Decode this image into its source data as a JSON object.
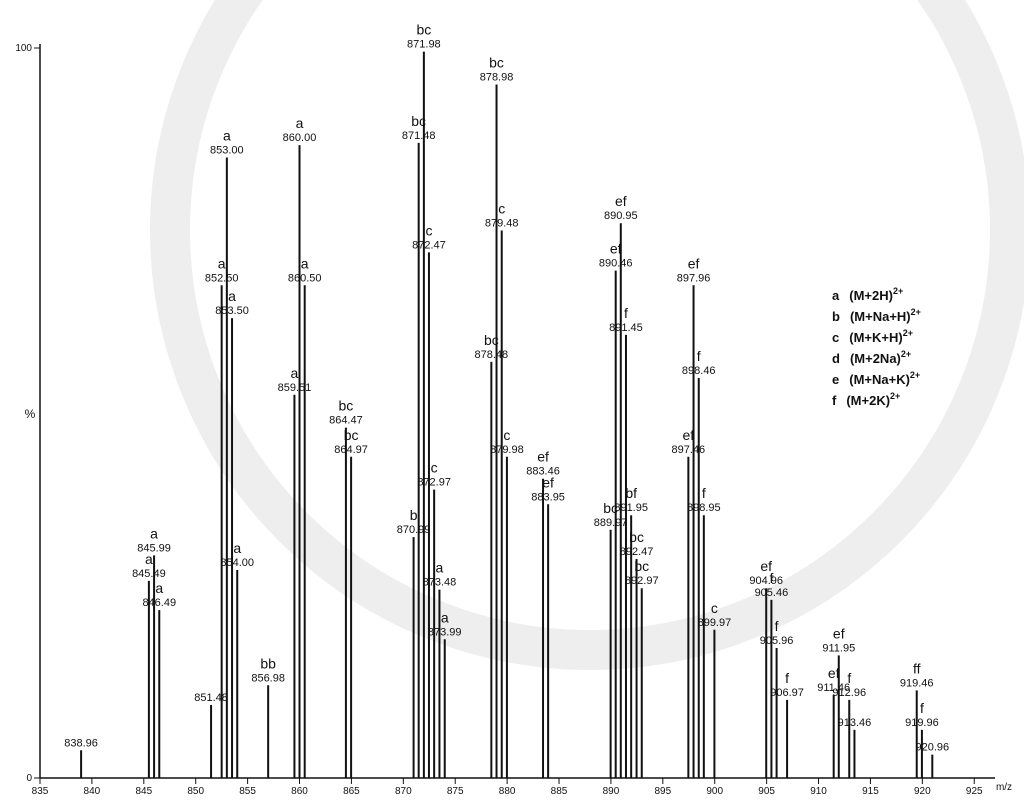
{
  "chart_data": {
    "type": "spectrum",
    "x_label": "m/z",
    "y_label": "%",
    "xlim": [
      835,
      927
    ],
    "xticks": [
      835,
      840,
      845,
      850,
      855,
      860,
      865,
      870,
      875,
      880,
      885,
      890,
      895,
      900,
      905,
      910,
      915,
      920,
      925
    ],
    "ylim": [
      0,
      100
    ],
    "yticks": [
      0,
      100
    ],
    "color": "#111111",
    "x": [
      838.96,
      845.49,
      845.99,
      846.49,
      851.48,
      852.5,
      853.0,
      853.5,
      854.0,
      856.98,
      859.51,
      860.0,
      860.5,
      864.47,
      864.97,
      870.99,
      871.48,
      871.98,
      872.47,
      872.97,
      873.48,
      873.99,
      878.48,
      878.98,
      879.48,
      879.98,
      883.46,
      883.95,
      889.97,
      890.46,
      890.95,
      891.45,
      891.95,
      892.47,
      892.97,
      897.46,
      897.96,
      898.46,
      898.95,
      899.97,
      904.96,
      905.46,
      905.96,
      906.97,
      911.46,
      911.95,
      912.96,
      913.46,
      919.46,
      919.96,
      920.96
    ],
    "x_labels": [
      "838.96",
      "845.49",
      "845.99",
      "846.49",
      "851.48",
      "852.50",
      "853.00",
      "853.50",
      "854.00",
      "856.98",
      "859.51",
      "860.00",
      "860.50",
      "864.47",
      "864.97",
      "870.99",
      "871.48",
      "871.98",
      "872.47",
      "872.97",
      "873.48",
      "873.99",
      "878.48",
      "878.98",
      "879.48",
      "879.98",
      "883.46",
      "883.95",
      "889.97",
      "890.46",
      "890.95",
      "891.45",
      "891.95",
      "892.47",
      "892.97",
      "897.46",
      "897.96",
      "898.46",
      "898.95",
      "899.97",
      "904.96",
      "905.46",
      "905.96",
      "906.97",
      "911.46",
      "911.95",
      "912.96",
      "913.46",
      "919.46",
      "919.96",
      "920.96"
    ],
    "values": [
      3.8,
      27,
      30.5,
      23,
      10,
      67.5,
      85,
      63,
      28.5,
      12.7,
      52.5,
      86.7,
      67.5,
      48,
      44,
      33,
      87,
      99.5,
      72,
      39.5,
      25.8,
      19,
      57,
      95,
      75,
      44,
      41,
      37.5,
      34,
      69.5,
      76,
      60.7,
      36,
      30,
      26,
      44,
      67.5,
      54.8,
      36,
      20.3,
      26,
      24.4,
      17.8,
      10.7,
      11.4,
      16.8,
      10.7,
      6.6,
      12,
      6.6,
      3.2
    ],
    "tags": [
      null,
      "a",
      "a",
      "a",
      null,
      "a",
      "a",
      "a",
      "a",
      "bb",
      "a",
      "a",
      "a",
      "bc",
      "bc",
      "b",
      "bc",
      "bc",
      "c",
      "c",
      "a",
      "a",
      "bc",
      "bc",
      "c",
      "c",
      "ef",
      "ef",
      "bc",
      "ef",
      "ef",
      "f",
      "bf",
      "bc",
      "bc",
      "ef",
      "ef",
      "f",
      "f",
      "c",
      "ef",
      "f",
      "f",
      "f",
      "ef",
      "ef",
      "f",
      null,
      "ff",
      "f",
      null
    ],
    "legend": [
      {
        "key": "a",
        "ion": "(M+2H)",
        "charge": "2+"
      },
      {
        "key": "b",
        "ion": "(M+Na+H)",
        "charge": "2+"
      },
      {
        "key": "c",
        "ion": "(M+K+H)",
        "charge": "2+"
      },
      {
        "key": "d",
        "ion": "(M+2Na)",
        "charge": "2+"
      },
      {
        "key": "e",
        "ion": "(M+Na+K)",
        "charge": "2+"
      },
      {
        "key": "f",
        "ion": "(M+2K)",
        "charge": "2+"
      }
    ]
  }
}
